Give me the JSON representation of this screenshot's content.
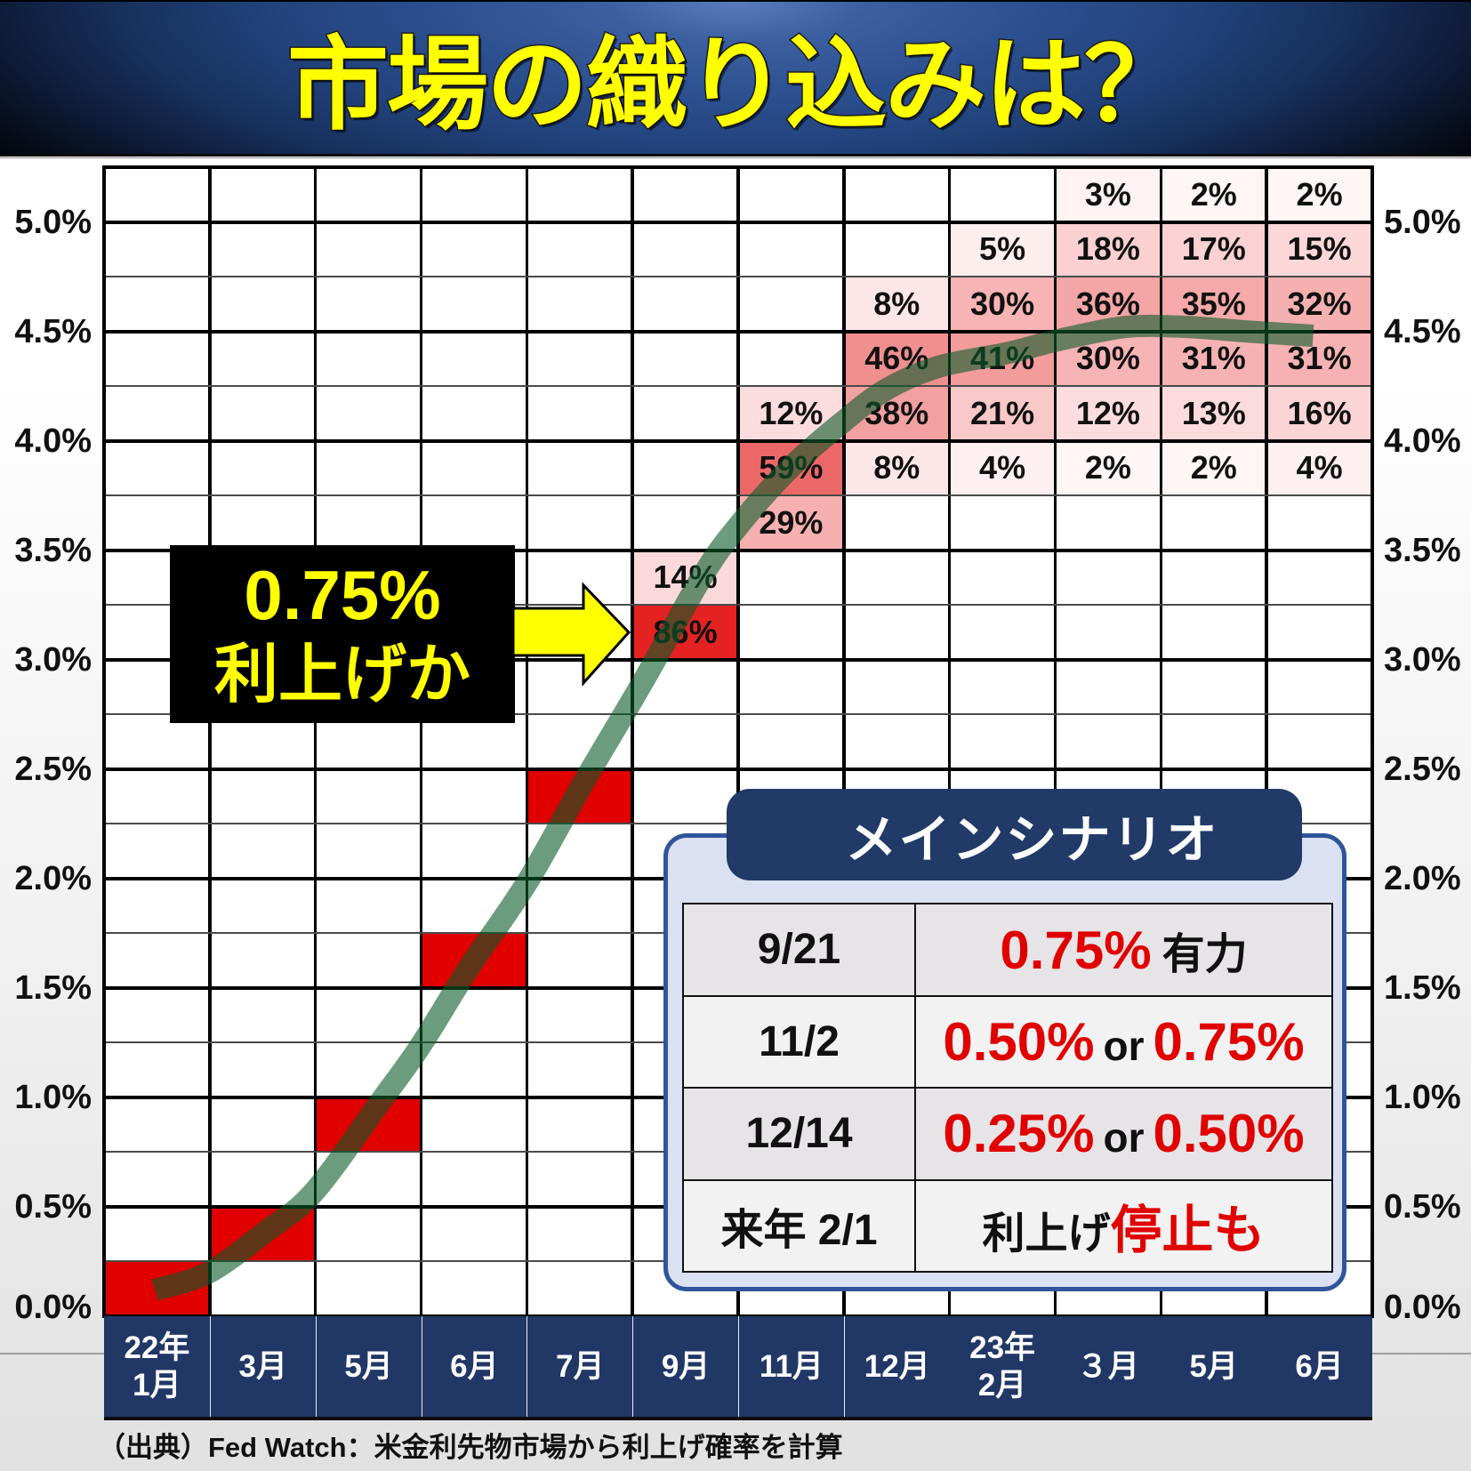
{
  "theme": {
    "title_yellow": "#ffff00",
    "navy": "#213766",
    "accent_red": "#e00000",
    "panel_border": "#2f559b",
    "panel_bg": "#dae1f2",
    "pill_bg": "#213a68"
  },
  "header": {
    "title": "市場の織り込みは？"
  },
  "y_axis": {
    "labels": [
      "5.0%",
      "4.5%",
      "4.0%",
      "3.5%",
      "3.0%",
      "2.5%",
      "2.0%",
      "1.5%",
      "1.0%",
      "0.5%",
      "0.0%"
    ]
  },
  "x_axis": {
    "labels": [
      {
        "line1": "22年",
        "line2": "1月"
      },
      {
        "line1": "3月"
      },
      {
        "line1": "5月"
      },
      {
        "line1": "6月"
      },
      {
        "line1": "7月"
      },
      {
        "line1": "9月"
      },
      {
        "line1": "11月"
      },
      {
        "line1": "12月"
      },
      {
        "line1": "23年",
        "line2": "2月"
      },
      {
        "line1": "３月"
      },
      {
        "line1": "5月"
      },
      {
        "line1": "6月"
      }
    ]
  },
  "callout": {
    "line1": "0.75%",
    "line2": "利上げか"
  },
  "scenario": {
    "title": "メインシナリオ",
    "rows": [
      {
        "date": "9/21",
        "outcome": [
          {
            "text": "0.75%",
            "highlight": true
          },
          {
            "text": "有力",
            "highlight": false
          }
        ]
      },
      {
        "date": "11/2",
        "outcome": [
          {
            "text": "0.50%",
            "highlight": true
          },
          {
            "text": "or",
            "highlight": false
          },
          {
            "text": "0.75%",
            "highlight": true
          }
        ]
      },
      {
        "date": "12/14",
        "outcome": [
          {
            "text": "0.25%",
            "highlight": true
          },
          {
            "text": "or",
            "highlight": false
          },
          {
            "text": "0.50%",
            "highlight": true
          }
        ]
      },
      {
        "date": "来年 2/1",
        "outcome": [
          {
            "text": "利上げ",
            "highlight": false
          },
          {
            "text": "停止も",
            "highlight": true
          }
        ]
      }
    ]
  },
  "footer": {
    "source": "（出典）Fed Watch：米金利先物市場から利上げ確率を計算"
  },
  "chart_data": {
    "type": "heatmap",
    "title": "市場の織り込みは？",
    "xlabel": "",
    "ylabel": "",
    "categories": [
      "22年1月",
      "3月",
      "5月",
      "6月",
      "7月",
      "9月",
      "11月",
      "12月",
      "23年2月",
      "３月",
      "5月",
      "6月"
    ],
    "y_ticks": [
      "0.0%",
      "0.5%",
      "1.0%",
      "1.5%",
      "2.0%",
      "2.5%",
      "3.0%",
      "3.5%",
      "4.0%",
      "4.5%",
      "5.0%"
    ],
    "ylim": [
      0,
      5.25
    ],
    "band_width": 0.25,
    "grid": true,
    "legend": null,
    "columns": [
      {
        "category": "22年1月",
        "cells": [
          {
            "low": 0.0,
            "high": 0.25,
            "value": null,
            "color": "#e00000"
          }
        ]
      },
      {
        "category": "3月",
        "cells": [
          {
            "low": 0.25,
            "high": 0.5,
            "value": null,
            "color": "#e00000"
          }
        ]
      },
      {
        "category": "5月",
        "cells": [
          {
            "low": 0.75,
            "high": 1.0,
            "value": null,
            "color": "#e00000"
          }
        ]
      },
      {
        "category": "6月",
        "cells": [
          {
            "low": 1.5,
            "high": 1.75,
            "value": null,
            "color": "#e00000"
          }
        ]
      },
      {
        "category": "7月",
        "cells": [
          {
            "low": 2.25,
            "high": 2.5,
            "value": null,
            "color": "#e00000"
          }
        ]
      },
      {
        "category": "9月",
        "cells": [
          {
            "low": 3.25,
            "high": 3.5,
            "value": 14,
            "color": "#fbd9da"
          },
          {
            "low": 3.0,
            "high": 3.25,
            "value": 86,
            "color": "#e52222"
          }
        ]
      },
      {
        "category": "11月",
        "cells": [
          {
            "low": 4.0,
            "high": 4.25,
            "value": 12,
            "color": "#fcdddf"
          },
          {
            "low": 3.75,
            "high": 4.0,
            "value": 59,
            "color": "#ec6868"
          },
          {
            "low": 3.5,
            "high": 3.75,
            "value": 29,
            "color": "#f6b0b0"
          }
        ]
      },
      {
        "category": "12月",
        "cells": [
          {
            "low": 4.5,
            "high": 4.75,
            "value": 8,
            "color": "#fde6e7"
          },
          {
            "low": 4.25,
            "high": 4.5,
            "value": 46,
            "color": "#f08f8f"
          },
          {
            "low": 4.0,
            "high": 4.25,
            "value": 38,
            "color": "#f2a0a0"
          },
          {
            "low": 3.75,
            "high": 4.0,
            "value": 8,
            "color": "#fde6e7"
          }
        ]
      },
      {
        "category": "23年2月",
        "cells": [
          {
            "low": 4.75,
            "high": 5.0,
            "value": 5,
            "color": "#fdeeee"
          },
          {
            "low": 4.5,
            "high": 4.75,
            "value": 30,
            "color": "#f7b4b4"
          },
          {
            "low": 4.25,
            "high": 4.5,
            "value": 41,
            "color": "#f29c9c"
          },
          {
            "low": 4.0,
            "high": 4.25,
            "value": 21,
            "color": "#f9c8c9"
          },
          {
            "low": 3.75,
            "high": 4.0,
            "value": 4,
            "color": "#fef0f0"
          }
        ]
      },
      {
        "category": "３月",
        "cells": [
          {
            "low": 5.0,
            "high": 5.25,
            "value": 3,
            "color": "#fef2f2"
          },
          {
            "low": 4.75,
            "high": 5.0,
            "value": 18,
            "color": "#fad0d1"
          },
          {
            "low": 4.5,
            "high": 4.75,
            "value": 36,
            "color": "#f4a6a6"
          },
          {
            "low": 4.25,
            "high": 4.5,
            "value": 30,
            "color": "#f7b4b4"
          },
          {
            "low": 4.0,
            "high": 4.25,
            "value": 12,
            "color": "#fcdddf"
          },
          {
            "low": 3.75,
            "high": 4.0,
            "value": 2,
            "color": "#fef5f5"
          }
        ]
      },
      {
        "category": "5月",
        "cells": [
          {
            "low": 5.0,
            "high": 5.25,
            "value": 2,
            "color": "#fef5f5"
          },
          {
            "low": 4.75,
            "high": 5.0,
            "value": 17,
            "color": "#fad2d3"
          },
          {
            "low": 4.5,
            "high": 4.75,
            "value": 35,
            "color": "#f5a9a9"
          },
          {
            "low": 4.25,
            "high": 4.5,
            "value": 31,
            "color": "#f6b2b2"
          },
          {
            "low": 4.0,
            "high": 4.25,
            "value": 13,
            "color": "#fbdbdc"
          },
          {
            "low": 3.75,
            "high": 4.0,
            "value": 2,
            "color": "#fef5f5"
          }
        ]
      },
      {
        "category": "6月",
        "cells": [
          {
            "low": 5.0,
            "high": 5.25,
            "value": 2,
            "color": "#fef5f5"
          },
          {
            "low": 4.75,
            "high": 5.0,
            "value": 15,
            "color": "#fbd7d8"
          },
          {
            "low": 4.5,
            "high": 4.75,
            "value": 32,
            "color": "#f6b0b0"
          },
          {
            "low": 4.25,
            "high": 4.5,
            "value": 31,
            "color": "#f6b2b2"
          },
          {
            "low": 4.0,
            "high": 4.25,
            "value": 16,
            "color": "#fbd5d6"
          },
          {
            "low": 3.75,
            "high": 4.0,
            "value": 4,
            "color": "#fef0f0"
          }
        ]
      }
    ],
    "trend_line": {
      "color": "rgba(10,90,40,0.6)",
      "points": [
        [
          0.48,
          0.12
        ],
        [
          0.99,
          0.2
        ],
        [
          1.54,
          0.39
        ],
        [
          1.99,
          0.57
        ],
        [
          2.63,
          0.99
        ],
        [
          3.0,
          1.24
        ],
        [
          3.45,
          1.59
        ],
        [
          4.0,
          1.98
        ],
        [
          4.55,
          2.45
        ],
        [
          5.1,
          2.9
        ],
        [
          5.66,
          3.38
        ],
        [
          6.0,
          3.61
        ],
        [
          6.48,
          3.87
        ],
        [
          7.0,
          4.09
        ],
        [
          7.42,
          4.24
        ],
        [
          7.91,
          4.34
        ],
        [
          8.54,
          4.4
        ],
        [
          9.03,
          4.46
        ],
        [
          9.67,
          4.52
        ],
        [
          10.24,
          4.52
        ],
        [
          10.8,
          4.5
        ],
        [
          11.44,
          4.48
        ]
      ]
    },
    "annotations": [
      {
        "text": "0.75% 利上げか",
        "points_to": {
          "category": "9月",
          "band": [
            3.0,
            3.25
          ]
        }
      }
    ]
  }
}
